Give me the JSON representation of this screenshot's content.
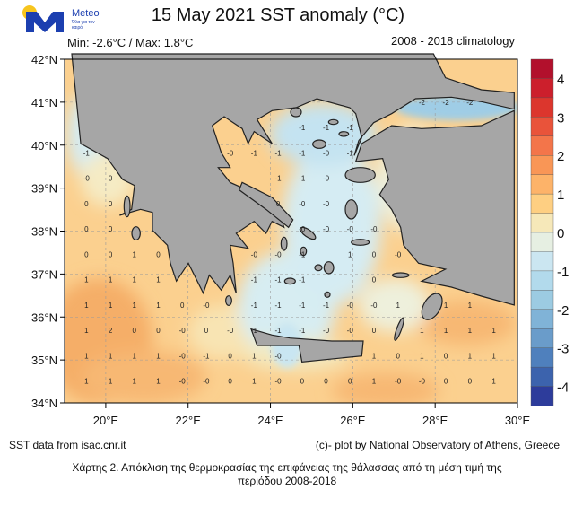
{
  "header": {
    "title": "15 May 2021 SST anomaly (°C)",
    "min_max": "Min: -2.6°C / Max: 1.8°C",
    "climatology": "2008 - 2018 climatology"
  },
  "logo": {
    "name": "Meteo",
    "tagline": "Όλα για τον καιρό",
    "brand_color": "#1c3fb0",
    "sun_color": "#f7c51e"
  },
  "footer": {
    "source": "SST data from isac.cnr.it",
    "credit": "(c)- plot by National Observatory of Athens, Greece"
  },
  "caption": {
    "line1": "Χάρτης 2. Απόκλιση της θερμοκρασίας της επιφάνειας της θάλασσας από τη μέση τιμή της",
    "line2": "περιόδου 2008-2018"
  },
  "map_data": {
    "type": "map",
    "variable": "SST anomaly",
    "units": "°C",
    "lon_range": [
      19,
      30
    ],
    "lat_range": [
      34,
      42
    ],
    "lat_ticks": [
      {
        "v": 42,
        "label": "42°N"
      },
      {
        "v": 41,
        "label": "41°N"
      },
      {
        "v": 40,
        "label": "40°N"
      },
      {
        "v": 39,
        "label": "39°N"
      },
      {
        "v": 38,
        "label": "38°N"
      },
      {
        "v": 37,
        "label": "37°N"
      },
      {
        "v": 36,
        "label": "36°N"
      },
      {
        "v": 35,
        "label": "35°N"
      },
      {
        "v": 34,
        "label": "34°N"
      }
    ],
    "lon_ticks": [
      {
        "v": 20,
        "label": "20°E"
      },
      {
        "v": 22,
        "label": "22°E"
      },
      {
        "v": 24,
        "label": "24°E"
      },
      {
        "v": 26,
        "label": "26°E"
      },
      {
        "v": 28,
        "label": "28°E"
      },
      {
        "v": 30,
        "label": "30°E"
      }
    ],
    "colorbar": {
      "range": [
        -4.5,
        4.5
      ],
      "step": 0.5,
      "colors_top_to_bottom": [
        "#b2102c",
        "#cc1f2c",
        "#dc362d",
        "#e9533a",
        "#f3754a",
        "#f99656",
        "#fdb369",
        "#fecf82",
        "#f6e8b9",
        "#e6efe2",
        "#cbe6f1",
        "#b2daec",
        "#9ccbe2",
        "#80b3d7",
        "#6a9cca",
        "#4f80bd",
        "#3c63ad",
        "#2d3c9b"
      ],
      "ticks": [
        {
          "v": 4,
          "label": "4"
        },
        {
          "v": 3,
          "label": "3"
        },
        {
          "v": 2,
          "label": "2"
        },
        {
          "v": 1,
          "label": "1"
        },
        {
          "v": 0,
          "label": "0"
        },
        {
          "v": -1,
          "label": "-1"
        },
        {
          "v": -2,
          "label": "-2"
        },
        {
          "v": -3,
          "label": "-3"
        },
        {
          "v": -4,
          "label": "-4"
        }
      ]
    },
    "grid_labels": [
      {
        "lat": 41.0,
        "cells": [
          [
            14,
            "-2"
          ],
          [
            15,
            "-2"
          ],
          [
            16,
            "-2"
          ]
        ]
      },
      {
        "lat": 40.41,
        "cells": [
          [
            9,
            "-1"
          ],
          [
            10,
            "-1"
          ],
          [
            11,
            "-1"
          ]
        ]
      },
      {
        "lat": 39.82,
        "cells": [
          [
            0,
            "-1"
          ],
          [
            6,
            "-0"
          ],
          [
            7,
            "-1"
          ],
          [
            8,
            "-1"
          ],
          [
            9,
            "-1"
          ],
          [
            10,
            "-0"
          ],
          [
            11,
            "-1"
          ]
        ]
      },
      {
        "lat": 39.23,
        "cells": [
          [
            0,
            "-0"
          ],
          [
            1,
            "0"
          ],
          [
            8,
            "-1"
          ],
          [
            9,
            "-1"
          ],
          [
            10,
            "-0"
          ]
        ]
      },
      {
        "lat": 38.64,
        "cells": [
          [
            0,
            "0"
          ],
          [
            1,
            "0"
          ],
          [
            8,
            "0"
          ],
          [
            9,
            "-0"
          ],
          [
            10,
            "-0"
          ]
        ]
      },
      {
        "lat": 38.05,
        "cells": [
          [
            0,
            "0"
          ],
          [
            1,
            "0"
          ],
          [
            9,
            "-0"
          ],
          [
            10,
            "-0"
          ],
          [
            11,
            "-0"
          ],
          [
            12,
            "-0"
          ]
        ]
      },
      {
        "lat": 37.46,
        "cells": [
          [
            0,
            "0"
          ],
          [
            1,
            "0"
          ],
          [
            2,
            "1"
          ],
          [
            3,
            "0"
          ],
          [
            7,
            "-0"
          ],
          [
            8,
            "-0"
          ],
          [
            9,
            "-1"
          ],
          [
            11,
            "1"
          ],
          [
            12,
            "0"
          ],
          [
            13,
            "-0"
          ]
        ]
      },
      {
        "lat": 36.87,
        "cells": [
          [
            0,
            "1"
          ],
          [
            1,
            "1"
          ],
          [
            2,
            "1"
          ],
          [
            3,
            "1"
          ],
          [
            7,
            "-1"
          ],
          [
            8,
            "-1"
          ],
          [
            9,
            "-1"
          ],
          [
            12,
            "0"
          ]
        ]
      },
      {
        "lat": 36.28,
        "cells": [
          [
            0,
            "1"
          ],
          [
            1,
            "1"
          ],
          [
            2,
            "1"
          ],
          [
            3,
            "1"
          ],
          [
            4,
            "0"
          ],
          [
            5,
            "-0"
          ],
          [
            7,
            "-1"
          ],
          [
            8,
            "-1"
          ],
          [
            9,
            "-1"
          ],
          [
            10,
            "-1"
          ],
          [
            11,
            "-0"
          ],
          [
            12,
            "-0"
          ],
          [
            13,
            "1"
          ],
          [
            15,
            "1"
          ],
          [
            16,
            "1"
          ]
        ]
      },
      {
        "lat": 35.69,
        "cells": [
          [
            0,
            "1"
          ],
          [
            1,
            "2"
          ],
          [
            2,
            "0"
          ],
          [
            3,
            "0"
          ],
          [
            4,
            "-0"
          ],
          [
            5,
            "0"
          ],
          [
            6,
            "-0"
          ],
          [
            7,
            "-1"
          ],
          [
            8,
            "-1"
          ],
          [
            9,
            "-1"
          ],
          [
            10,
            "-0"
          ],
          [
            11,
            "-0"
          ],
          [
            12,
            "0"
          ],
          [
            14,
            "1"
          ],
          [
            15,
            "1"
          ],
          [
            16,
            "1"
          ],
          [
            17,
            "1"
          ]
        ]
      },
      {
        "lat": 35.1,
        "cells": [
          [
            0,
            "1"
          ],
          [
            1,
            "1"
          ],
          [
            2,
            "1"
          ],
          [
            3,
            "1"
          ],
          [
            4,
            "-0"
          ],
          [
            5,
            "-1"
          ],
          [
            6,
            "0"
          ],
          [
            7,
            "1"
          ],
          [
            8,
            "-0"
          ],
          [
            12,
            "1"
          ],
          [
            13,
            "0"
          ],
          [
            14,
            "1"
          ],
          [
            15,
            "0"
          ],
          [
            16,
            "1"
          ],
          [
            17,
            "1"
          ]
        ]
      },
      {
        "lat": 34.51,
        "cells": [
          [
            0,
            "1"
          ],
          [
            1,
            "1"
          ],
          [
            2,
            "1"
          ],
          [
            3,
            "1"
          ],
          [
            4,
            "-0"
          ],
          [
            5,
            "-0"
          ],
          [
            6,
            "0"
          ],
          [
            7,
            "1"
          ],
          [
            8,
            "-0"
          ],
          [
            9,
            "0"
          ],
          [
            10,
            "0"
          ],
          [
            11,
            "0"
          ],
          [
            12,
            "1"
          ],
          [
            13,
            "-0"
          ],
          [
            14,
            "-0"
          ],
          [
            15,
            "0"
          ],
          [
            16,
            "0"
          ],
          [
            17,
            "1"
          ]
        ]
      }
    ],
    "grid_lon_start": 19.53,
    "grid_lon_step": 0.582
  }
}
